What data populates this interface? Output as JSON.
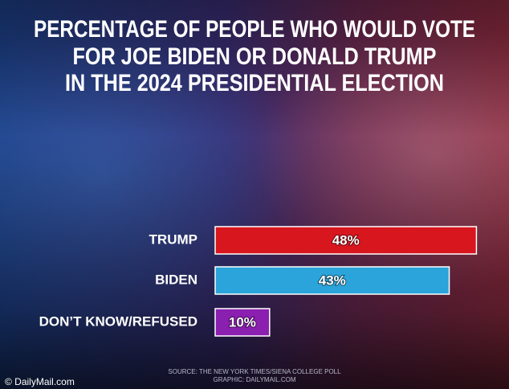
{
  "chart_data": {
    "type": "bar",
    "orientation": "horizontal",
    "title": [
      "PERCENTAGE OF PEOPLE WHO WOULD VOTE",
      "FOR JOE BIDEN OR DONALD TRUMP",
      "IN THE 2024 PRESIDENTIAL ELECTION"
    ],
    "categories": [
      "TRUMP",
      "BIDEN",
      "DON’T KNOW/REFUSED"
    ],
    "values": [
      48,
      43,
      10
    ],
    "value_labels": [
      "48%",
      "43%",
      "10%"
    ],
    "colors": [
      "#d7161e",
      "#2aa4da",
      "#8a1fb0"
    ],
    "source": [
      "SOURCE:  THE NEW YORK TIMES/SIENA COLLEGE POLL",
      "GRAPHIC: DAILYMAIL.COM"
    ],
    "logo": "© DailyMail.com"
  }
}
